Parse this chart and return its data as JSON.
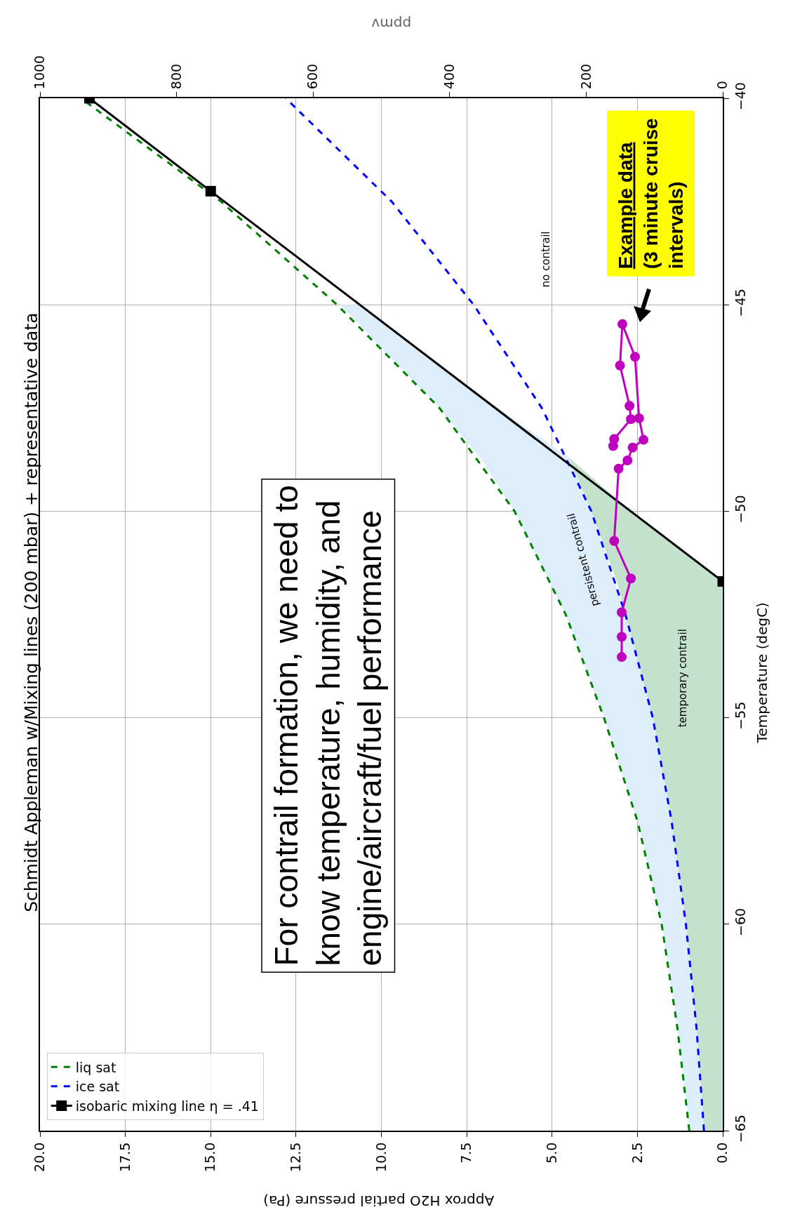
{
  "chart_data": {
    "type": "line",
    "title": "Schmidt Appleman w/Mixing lines (200 mbar) + representative data",
    "xlabel": "Approx H2O partial pressure (Pa)",
    "ylabel": "Temperature (degC)",
    "x2label": "ppmv",
    "xlim": [
      20,
      0
    ],
    "xticks": [
      {
        "value": 0,
        "label": "0.0"
      },
      {
        "value": 2.5,
        "label": "2.5"
      },
      {
        "value": 5,
        "label": "5.0"
      },
      {
        "value": 7.5,
        "label": "7.5"
      },
      {
        "value": 10,
        "label": "10.0"
      },
      {
        "value": 12.5,
        "label": "12.5"
      },
      {
        "value": 15,
        "label": "15.0"
      },
      {
        "value": 17.5,
        "label": "17.5"
      },
      {
        "value": 20,
        "label": "20.0"
      }
    ],
    "ylim": [
      -65,
      -40
    ],
    "yticks": [
      {
        "value": -65,
        "label": "−65"
      },
      {
        "value": -60,
        "label": "−60"
      },
      {
        "value": -55,
        "label": "−55"
      },
      {
        "value": -50,
        "label": "−50"
      },
      {
        "value": -45,
        "label": "−45"
      },
      {
        "value": -40,
        "label": "−40"
      }
    ],
    "x2lim": [
      1000,
      0
    ],
    "x2ticks": [
      0,
      200,
      400,
      600,
      800,
      1000
    ],
    "grid": true,
    "legend": "bottom left",
    "series": [
      {
        "type": "area",
        "color": "#c3e1cc",
        "x": [
          0,
          0.55,
          0.77,
          1.08,
          1.5,
          2.05,
          2.85,
          3.1,
          3.85,
          4.5,
          2.7,
          0
        ],
        "values": [
          -65,
          -65,
          -62.5,
          -60,
          -57.5,
          -55,
          -52.5,
          -51.7,
          -50,
          -48.7,
          -50,
          -51.7
        ]
      },
      {
        "type": "area",
        "color": "#ddedf9",
        "x": [
          0.98,
          1.33,
          1.79,
          2.5,
          3.48,
          4.6,
          6.1,
          7.1,
          8.3,
          11.2,
          10.6,
          6.6,
          4.5,
          3.85,
          2.85,
          2.05,
          1.5,
          1.08,
          0.77,
          0.55
        ],
        "values": [
          -65,
          -62.5,
          -60,
          -57.5,
          -55,
          -52.5,
          -50,
          -48.7,
          -47.5,
          -45,
          -45,
          -47.5,
          -48.7,
          -50,
          -52.5,
          -55,
          -57.5,
          -60,
          -62.5,
          -65
        ]
      },
      {
        "type": "line",
        "name": "liq sat",
        "color": "#008000",
        "line_style": "dashed",
        "marker": "none",
        "x": [
          0.98,
          1.33,
          1.79,
          2.5,
          3.48,
          4.6,
          6.1,
          8.3,
          11.3,
          14.7,
          18.8
        ],
        "values": [
          -65,
          -62.5,
          -60,
          -57.5,
          -55,
          -52.5,
          -50,
          -47.5,
          -45,
          -42.5,
          -40
        ]
      },
      {
        "type": "line",
        "name": "ice sat",
        "color": "#0000ff",
        "line_style": "dashed",
        "marker": "none",
        "x": [
          0.55,
          0.77,
          1.08,
          1.5,
          2.05,
          2.85,
          3.85,
          5.3,
          7.3,
          9.7,
          12.8
        ],
        "values": [
          -65,
          -62.5,
          -60,
          -57.5,
          -55,
          -52.5,
          -50,
          -47.5,
          -45,
          -42.5,
          -40
        ]
      },
      {
        "type": "line",
        "name": "isobaric mixing line η = .41",
        "color": "#000000",
        "line_style": "solid",
        "marker": "square",
        "x": [
          0,
          15,
          18.55
        ],
        "values": [
          -51.7,
          -42.25,
          -40
        ]
      },
      {
        "type": "line",
        "color": "#bf00bf",
        "line_style": "solid",
        "marker": "circle",
        "x": [
          2.96,
          2.96,
          2.96,
          2.69,
          3.18,
          3.05,
          2.79,
          2.64,
          2.32,
          2.45,
          2.57,
          2.94,
          3.01,
          2.73,
          2.69,
          3.18,
          3.21
        ],
        "values": [
          -53.53,
          -53.04,
          -52.45,
          -51.63,
          -50.72,
          -48.97,
          -48.77,
          -48.46,
          -48.27,
          -47.75,
          -46.26,
          -45.47,
          -46.47,
          -47.45,
          -47.77,
          -48.25,
          -48.42
        ]
      }
    ],
    "annotations": [
      "For contrail formation, we need to\nknow temperature, humidity, and\nengine/aircraft/fuel performance",
      "Example data\n(3 minute cruise\nintervals)",
      "no contrail",
      "persistent contrail",
      "temporary contrail"
    ]
  }
}
